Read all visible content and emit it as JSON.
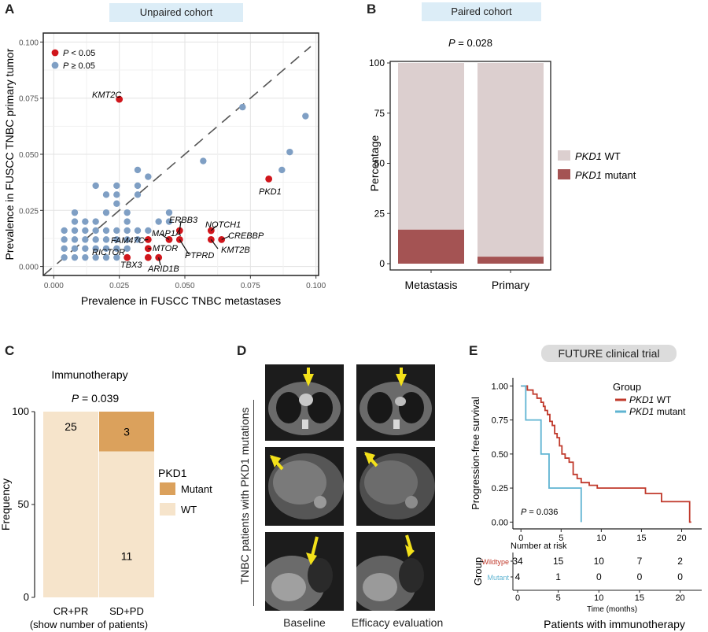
{
  "panelA": {
    "letter": "A",
    "banner": "Unpaired cohort",
    "chart_data": {
      "type": "scatter",
      "xlabel": "Prevalence in FUSCC TNBC metastases",
      "ylabel": "Prevalence in FUSCC TNBC primary tumor",
      "xlim": [
        -0.004,
        0.101
      ],
      "ylim": [
        -0.004,
        0.104
      ],
      "xticks": [
        "0.000",
        "0.025",
        "0.050",
        "0.075",
        "0.100"
      ],
      "yticks": [
        "0.000",
        "0.025",
        "0.050",
        "0.075",
        "0.100"
      ],
      "grid": true,
      "diagonal": true,
      "legend": [
        {
          "label": "P < 0.05",
          "color": "#d0161c"
        },
        {
          "label": "P ≥ 0.05",
          "color": "#7f9fc4"
        }
      ],
      "nonsig_points": [
        [
          0.004,
          0.004
        ],
        [
          0.004,
          0.008
        ],
        [
          0.004,
          0.012
        ],
        [
          0.004,
          0.016
        ],
        [
          0.008,
          0.004
        ],
        [
          0.008,
          0.008
        ],
        [
          0.008,
          0.012
        ],
        [
          0.008,
          0.016
        ],
        [
          0.008,
          0.02
        ],
        [
          0.008,
          0.024
        ],
        [
          0.012,
          0.004
        ],
        [
          0.012,
          0.008
        ],
        [
          0.012,
          0.012
        ],
        [
          0.012,
          0.016
        ],
        [
          0.012,
          0.02
        ],
        [
          0.016,
          0.004
        ],
        [
          0.016,
          0.008
        ],
        [
          0.016,
          0.012
        ],
        [
          0.016,
          0.016
        ],
        [
          0.016,
          0.02
        ],
        [
          0.02,
          0.004
        ],
        [
          0.02,
          0.008
        ],
        [
          0.02,
          0.012
        ],
        [
          0.02,
          0.016
        ],
        [
          0.02,
          0.024
        ],
        [
          0.024,
          0.004
        ],
        [
          0.024,
          0.008
        ],
        [
          0.024,
          0.012
        ],
        [
          0.024,
          0.016
        ],
        [
          0.024,
          0.028
        ],
        [
          0.028,
          0.008
        ],
        [
          0.028,
          0.012
        ],
        [
          0.028,
          0.016
        ],
        [
          0.028,
          0.02
        ],
        [
          0.028,
          0.024
        ],
        [
          0.032,
          0.012
        ],
        [
          0.032,
          0.016
        ],
        [
          0.024,
          0.036
        ],
        [
          0.024,
          0.032
        ],
        [
          0.016,
          0.036
        ],
        [
          0.02,
          0.032
        ],
        [
          0.032,
          0.032
        ],
        [
          0.032,
          0.036
        ],
        [
          0.032,
          0.043
        ],
        [
          0.036,
          0.04
        ],
        [
          0.04,
          0.02
        ],
        [
          0.044,
          0.02
        ],
        [
          0.044,
          0.024
        ],
        [
          0.036,
          0.016
        ],
        [
          0.057,
          0.047
        ],
        [
          0.072,
          0.071
        ],
        [
          0.087,
          0.043
        ],
        [
          0.09,
          0.051
        ],
        [
          0.096,
          0.067
        ]
      ],
      "sig_points": [
        {
          "label": "KMT2C",
          "x": 0.025,
          "y": 0.0745
        },
        {
          "label": "PKD1",
          "x": 0.082,
          "y": 0.039
        },
        {
          "label": "ERBB3",
          "x": 0.048,
          "y": 0.016
        },
        {
          "label": "MAP1A",
          "x": 0.044,
          "y": 0.012
        },
        {
          "label": "NOTCH1",
          "x": 0.06,
          "y": 0.016
        },
        {
          "label": "CREBBP",
          "x": 0.064,
          "y": 0.012
        },
        {
          "label": "KMT2B",
          "x": 0.06,
          "y": 0.012
        },
        {
          "label": "PTPRD",
          "x": 0.048,
          "y": 0.012
        },
        {
          "label": "FAM47C",
          "x": 0.036,
          "y": 0.012
        },
        {
          "label": "MTOR",
          "x": 0.036,
          "y": 0.008
        },
        {
          "label": "RICTOR",
          "x": 0.036,
          "y": 0.004
        },
        {
          "label": "TBX3",
          "x": 0.028,
          "y": 0.004
        },
        {
          "label": "ARID1B",
          "x": 0.04,
          "y": 0.004
        }
      ]
    }
  },
  "panelB": {
    "letter": "B",
    "banner": "Paired cohort",
    "chart_data": {
      "type": "bar",
      "stacked": true,
      "title": "P = 0.028",
      "categories": [
        "Metastasis",
        "Primary"
      ],
      "ylabel": "Percentage",
      "ylim": [
        0,
        100
      ],
      "yticks": [
        "0",
        "25",
        "50",
        "75",
        "100"
      ],
      "series": [
        {
          "name": "PKD1 mutant",
          "values": [
            17,
            3.5
          ],
          "color": "#a45353"
        },
        {
          "name": "PKD1 WT",
          "values": [
            83,
            96.5
          ],
          "color": "#dccfcf"
        }
      ],
      "legend": [
        {
          "gene": "PKD1",
          "text": " WT",
          "color": "#dccfcf"
        },
        {
          "gene": "PKD1",
          "text": " mutant",
          "color": "#a45353"
        }
      ]
    }
  },
  "panelC": {
    "letter": "C",
    "chart_data": {
      "type": "bar",
      "stacked": true,
      "title": "Immunotherapy",
      "subtitle": "P = 0.039",
      "categories": [
        "CR+PR",
        "SD+PD"
      ],
      "xlabel": "(show number of patients)",
      "ylabel": "Frequency",
      "ylim": [
        0,
        100
      ],
      "yticks": [
        "0",
        "50",
        "100"
      ],
      "series": [
        {
          "name": "WT",
          "values": [
            100,
            78.6
          ],
          "counts": [
            "25",
            "11"
          ],
          "color": "#f6e4cb"
        },
        {
          "name": "Mutant",
          "values": [
            0,
            21.4
          ],
          "counts": [
            "",
            "3"
          ],
          "color": "#dba15c"
        }
      ],
      "legend_title": "PKD1"
    }
  },
  "panelD": {
    "letter": "D",
    "side_label": "TNBC patients with PKD1 mutations",
    "col_labels": [
      "Baseline",
      "Efficacy evaluation"
    ]
  },
  "panelE": {
    "letter": "E",
    "banner": "FUTURE clinical trial",
    "chart_data": {
      "type": "line",
      "step": true,
      "ylabel": "Progression-free survival",
      "xlabel": "Time (months)",
      "xlim": [
        -1,
        22.5
      ],
      "ylim": [
        -0.05,
        1.06
      ],
      "xticks": [
        "0",
        "5",
        "10",
        "15",
        "20"
      ],
      "yticks": [
        "0.00",
        "0.25",
        "0.50",
        "0.75",
        "1.00"
      ],
      "annotation": "P = 0.036",
      "legend_title": "Group",
      "series": [
        {
          "name": "PKD1 WT",
          "color": "#c0392b",
          "x": [
            0,
            0.8,
            1.5,
            2,
            2.5,
            2.8,
            3,
            3.3,
            3.6,
            3.9,
            4.2,
            4.5,
            4.8,
            5.1,
            5.5,
            6,
            6.5,
            7,
            7.5,
            8.5,
            9.5,
            11,
            15.5,
            17.5,
            19,
            20.5,
            21,
            21.2
          ],
          "y": [
            1.0,
            0.97,
            0.94,
            0.91,
            0.88,
            0.85,
            0.82,
            0.79,
            0.74,
            0.71,
            0.65,
            0.62,
            0.56,
            0.5,
            0.47,
            0.44,
            0.35,
            0.32,
            0.29,
            0.27,
            0.25,
            0.25,
            0.21,
            0.15,
            0.15,
            0.15,
            0.0,
            0.0
          ]
        },
        {
          "name": "PKD1 mutant",
          "color": "#5fb4d2",
          "x": [
            0,
            0.6,
            1.5,
            2.5,
            3.5,
            5,
            7.5,
            7.5
          ],
          "y": [
            1.0,
            0.75,
            0.75,
            0.5,
            0.25,
            0.25,
            0.25,
            0.0
          ]
        }
      ],
      "legend": [
        {
          "gene": "PKD1",
          "text": " WT",
          "color": "#c0392b"
        },
        {
          "gene": "PKD1",
          "text": " mutant",
          "color": "#5fb4d2"
        }
      ]
    },
    "risk_table": {
      "title": "Number at risk",
      "group_label": "Group",
      "xlabel": "Time (months)",
      "rows": [
        {
          "name": "Wildtype",
          "color": "#c0392b",
          "values": [
            "34",
            "15",
            "10",
            "7",
            "2"
          ]
        },
        {
          "name": "Mutant",
          "color": "#5fb4d2",
          "values": [
            "4",
            "1",
            "0",
            "0",
            "0"
          ]
        }
      ]
    },
    "caption": "Patients with immunotherapy"
  }
}
